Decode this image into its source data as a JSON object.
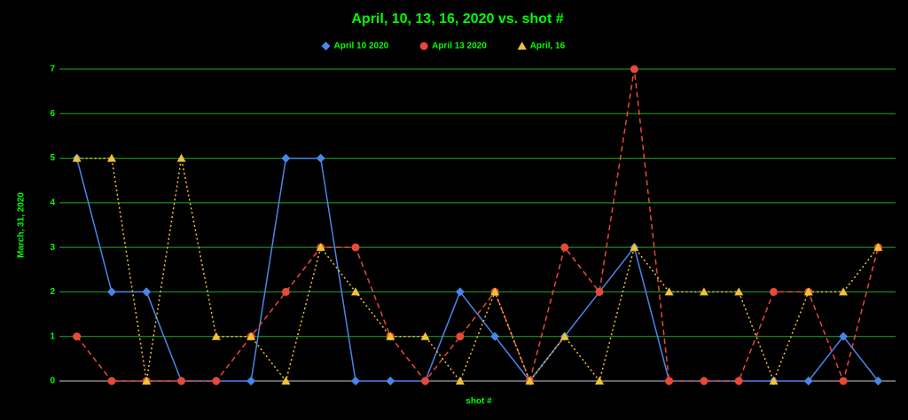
{
  "chart_data": {
    "type": "line",
    "title": "April, 10, 13, 16, 2020 vs. shot #",
    "x_label": "shot #",
    "y_label": "March, 31, 2020",
    "series": [
      {
        "name": "April 10 2020",
        "color": "#4a86e8",
        "style": "solid",
        "marker": "diamond",
        "values": [
          5,
          2,
          2,
          0,
          0,
          0,
          5,
          5,
          0,
          0,
          0,
          2,
          1,
          0,
          1,
          2,
          3,
          0,
          0,
          0,
          0,
          0,
          1,
          0
        ]
      },
      {
        "name": "April 13 2020",
        "color": "#e8483a",
        "style": "dashed",
        "marker": "circle",
        "values": [
          1,
          0,
          0,
          0,
          0,
          1,
          2,
          3,
          3,
          1,
          0,
          1,
          2,
          0,
          3,
          2,
          7,
          0,
          0,
          0,
          2,
          2,
          0,
          3
        ]
      },
      {
        "name": "April, 16",
        "color": "#f1c232",
        "style": "dotted",
        "marker": "triangle",
        "values": [
          5,
          5,
          0,
          5,
          1,
          1,
          0,
          3,
          2,
          1,
          1,
          0,
          2,
          0,
          1,
          0,
          3,
          2,
          2,
          2,
          0,
          2,
          2,
          3
        ]
      }
    ],
    "ylim": [
      0,
      7
    ],
    "yticks": [
      0,
      1,
      2,
      3,
      4,
      5,
      6,
      7
    ],
    "grid": true,
    "legend": "top"
  }
}
